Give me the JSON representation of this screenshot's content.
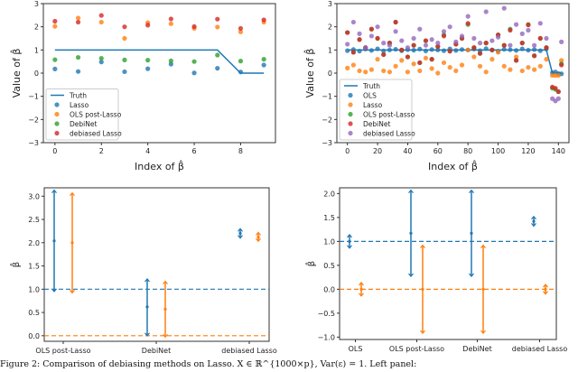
{
  "colors": {
    "blue": "#1f77b4",
    "orange": "#ff7f0e",
    "green": "#2ca02c",
    "red": "#d62728",
    "purple": "#9467bd"
  },
  "caption": "Figure 2: Comparison of debiasing methods on Lasso. X ∈ ℝ^{1000×p}, Var(ε) = 1. Left panel:",
  "chart_data": [
    {
      "type": "scatter",
      "xlabel": "Index of β̂",
      "ylabel": "Value of β̂",
      "xlim": [
        -0.5,
        9.5
      ],
      "ylim": [
        -3,
        3
      ],
      "xticks": [
        "0",
        "2",
        "4",
        "6",
        "8"
      ],
      "xtick_values": [
        0,
        2,
        4,
        6,
        8
      ],
      "yticks": [
        "−3",
        "−2",
        "−1",
        "0",
        "1",
        "2",
        "3"
      ],
      "ytick_values": [
        -3,
        -2,
        -1,
        0,
        1,
        2,
        3
      ],
      "legend_placement": "lower-left",
      "x": [
        0,
        1,
        2,
        3,
        4,
        5,
        6,
        7,
        8,
        9
      ],
      "truth": {
        "name": "Truth",
        "color": "blue",
        "values": [
          1,
          1,
          1,
          1,
          1,
          1,
          1,
          1,
          0,
          0
        ]
      },
      "series": [
        {
          "name": "Lasso",
          "color": "blue",
          "values": [
            0.18,
            0.07,
            0.48,
            0.06,
            0.19,
            0.39,
            0.01,
            0.21,
            0.05,
            0.35
          ]
        },
        {
          "name": "OLS post-Lasso",
          "color": "orange",
          "values": [
            2.02,
            2.38,
            2.2,
            1.5,
            2.18,
            2.13,
            1.93,
            1.99,
            1.78,
            2.2
          ]
        },
        {
          "name": "DebiNet",
          "color": "green",
          "values": [
            0.58,
            0.68,
            0.64,
            0.57,
            0.56,
            0.53,
            0.5,
            0.78,
            0.52,
            0.6
          ]
        },
        {
          "name": "debiased Lasso",
          "color": "red",
          "values": [
            2.24,
            2.2,
            2.49,
            2.0,
            2.07,
            2.34,
            2.01,
            2.33,
            1.93,
            2.3
          ]
        }
      ]
    },
    {
      "type": "scatter",
      "xlabel": "Index of β̂",
      "ylabel": "Value of β̂",
      "xlim": [
        -7,
        147
      ],
      "ylim": [
        -3,
        3
      ],
      "xticks": [
        "0",
        "20",
        "40",
        "60",
        "80",
        "100",
        "120",
        "140"
      ],
      "xtick_values": [
        0,
        20,
        40,
        60,
        80,
        100,
        120,
        140
      ],
      "yticks": [
        "−3",
        "−2",
        "−1",
        "0",
        "1",
        "2",
        "3"
      ],
      "ytick_values": [
        -3,
        -2,
        -1,
        0,
        1,
        2,
        3
      ],
      "legend_placement": "lower-left",
      "x": [
        0,
        4,
        8,
        12,
        16,
        20,
        24,
        28,
        32,
        36,
        40,
        44,
        48,
        52,
        56,
        60,
        64,
        68,
        72,
        76,
        80,
        84,
        88,
        92,
        96,
        100,
        104,
        108,
        112,
        116,
        120,
        124,
        128,
        132,
        136,
        138,
        140,
        142
      ],
      "truth": {
        "name": "Truth",
        "color": "blue",
        "values": [
          1,
          1,
          1,
          1,
          1,
          1,
          1,
          1,
          1,
          1,
          1,
          1,
          1,
          1,
          1,
          1,
          1,
          1,
          1,
          1,
          1,
          1,
          1,
          1,
          1,
          1,
          1,
          1,
          1,
          1,
          1,
          1,
          1,
          1,
          0,
          0,
          0,
          0
        ]
      },
      "series": [
        {
          "name": "OLS",
          "color": "blue",
          "values": [
            0.97,
            1.02,
            0.95,
            1.04,
            0.98,
            1.05,
            0.96,
            1.0,
            1.03,
            0.97,
            1.01,
            0.99,
            1.04,
            0.96,
            1.02,
            1.0,
            0.97,
            1.05,
            0.98,
            1.02,
            1.0,
            1.04,
            0.97,
            1.06,
            1.0,
            0.95,
            1.03,
            1.01,
            0.98,
            1.05,
            0.99,
            1.02,
            0.97,
            1.04,
            0.02,
            0.05,
            -0.02,
            -0.03
          ]
        },
        {
          "name": "Lasso",
          "color": "orange",
          "values": [
            0.22,
            0.35,
            0.1,
            0.05,
            0.15,
            0.6,
            0.1,
            0.05,
            0.3,
            0.55,
            0.05,
            0.4,
            0.1,
            0.65,
            0.2,
            0.0,
            0.45,
            0.25,
            0.1,
            0.35,
            1.0,
            0.7,
            0.3,
            0.05,
            0.6,
            0.9,
            0.3,
            0.15,
            0.7,
            0.1,
            0.25,
            0.15,
            0.3,
            0.6,
            -0.1,
            -0.1,
            -0.1,
            0.55
          ]
        },
        {
          "name": "OLS post-Lasso",
          "color": "green",
          "values": [
            1.75,
            0.9,
            1.45,
            1.1,
            1.9,
            1.5,
            0.8,
            1.3,
            2.2,
            1.0,
            0.7,
            1.2,
            0.45,
            1.4,
            0.6,
            1.15,
            1.65,
            0.95,
            1.25,
            1.5,
            2.1,
            1.1,
            0.85,
            1.3,
            1.0,
            1.65,
            1.2,
            1.9,
            0.55,
            1.3,
            2.1,
            0.75,
            1.5,
            1.1,
            -0.65,
            -0.7,
            -0.8,
            0.4
          ]
        },
        {
          "name": "DebiNet",
          "color": "red",
          "values": [
            1.75,
            0.9,
            1.45,
            1.1,
            1.9,
            1.5,
            0.8,
            1.3,
            2.2,
            1.0,
            0.7,
            1.2,
            0.45,
            1.4,
            0.6,
            1.15,
            1.6,
            0.95,
            1.25,
            1.5,
            2.15,
            1.1,
            0.85,
            1.3,
            1.0,
            1.65,
            1.2,
            1.85,
            0.55,
            1.3,
            2.08,
            0.75,
            1.5,
            1.1,
            -0.6,
            -0.65,
            -0.8,
            0.35
          ]
        },
        {
          "name": "debiased Lasso",
          "color": "purple",
          "values": [
            1.25,
            2.2,
            1.7,
            1.1,
            1.6,
            2.0,
            1.3,
            1.2,
            1.8,
            1.4,
            1.1,
            1.5,
            1.9,
            1.2,
            1.45,
            1.3,
            1.8,
            2.0,
            1.35,
            1.6,
            2.45,
            1.5,
            1.3,
            2.65,
            1.4,
            1.55,
            2.8,
            1.2,
            2.1,
            1.7,
            1.85,
            1.2,
            2.15,
            1.5,
            -1.1,
            -1.2,
            -1.1,
            1.35
          ]
        }
      ]
    },
    {
      "type": "errorbar",
      "ylabel": "β̂",
      "ylim": [
        -0.12,
        3.18
      ],
      "categories": [
        "OLS post-Lasso",
        "DebiNet",
        "debiased Lasso"
      ],
      "yticks": [
        "0.0",
        "0.5",
        "1.0",
        "1.5",
        "2.0",
        "2.5",
        "3.0"
      ],
      "ytick_values": [
        0,
        0.5,
        1,
        1.5,
        2,
        2.5,
        3
      ],
      "reference_lines": [
        {
          "value": 1.0,
          "color": "blue",
          "style": "dashed"
        },
        {
          "value": 0.0,
          "color": "orange",
          "style": "dashed"
        }
      ],
      "series": [
        {
          "color": "blue",
          "center": [
            2.04,
            0.62,
            2.2
          ],
          "low": [
            0.95,
            0.0,
            2.1
          ],
          "high": [
            3.13,
            1.22,
            2.3
          ]
        },
        {
          "color": "orange",
          "center": [
            2.0,
            0.57,
            2.12
          ],
          "low": [
            0.92,
            -0.03,
            2.03
          ],
          "high": [
            3.07,
            1.17,
            2.22
          ]
        }
      ]
    },
    {
      "type": "errorbar",
      "ylabel": "β̂",
      "ylim": [
        -1.05,
        2.12
      ],
      "categories": [
        "OLS",
        "OLS post-Lasso",
        "DebiNet",
        "debiased Lasso"
      ],
      "yticks": [
        "−1.0",
        "−0.5",
        "0.0",
        "0.5",
        "1.0",
        "1.5",
        "2.0"
      ],
      "ytick_values": [
        -1,
        -0.5,
        0,
        0.5,
        1,
        1.5,
        2
      ],
      "reference_lines": [
        {
          "value": 1.0,
          "color": "blue",
          "style": "dashed"
        },
        {
          "value": 0.0,
          "color": "orange",
          "style": "dashed"
        }
      ],
      "series": [
        {
          "color": "blue",
          "center": [
            1.0,
            1.17,
            1.17,
            1.42
          ],
          "low": [
            0.86,
            0.27,
            0.27,
            1.32
          ],
          "high": [
            1.14,
            2.07,
            2.07,
            1.52
          ]
        },
        {
          "color": "orange",
          "center": [
            0.0,
            0.0,
            0.0,
            0.0
          ],
          "low": [
            -0.14,
            -0.92,
            -0.92,
            -0.1
          ],
          "high": [
            0.14,
            0.92,
            0.92,
            0.1
          ]
        }
      ]
    }
  ]
}
